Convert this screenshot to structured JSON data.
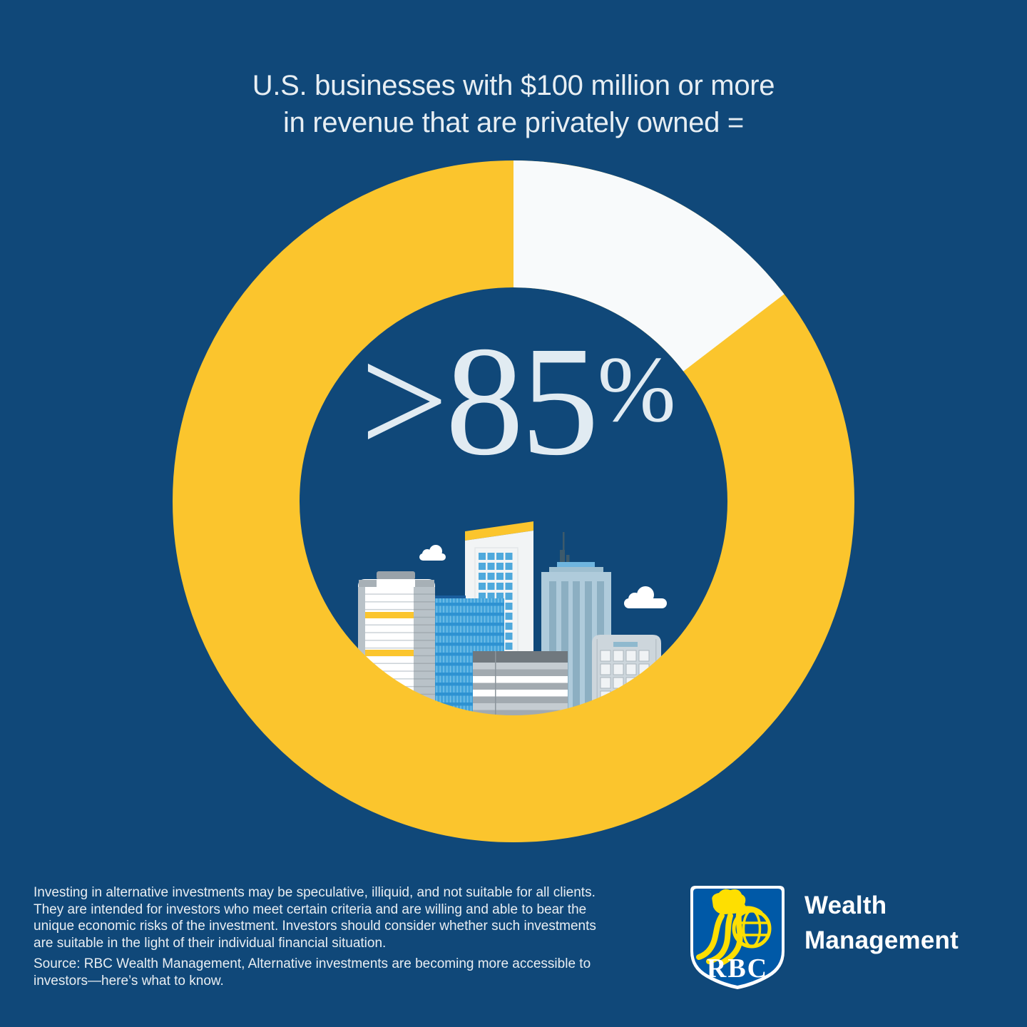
{
  "colors": {
    "background": "#104879",
    "gold": "#FBC52D",
    "slice_white": "#F8FAFB",
    "center_text": "#E1EBF2",
    "title_text": "#E7EEF3",
    "shield_blue": "#0059A7",
    "logo_gold": "#FEDF01"
  },
  "title": {
    "line1": "U.S. businesses with $100 million or more",
    "line2": "in revenue that are privately owned ="
  },
  "chart_data": {
    "type": "pie",
    "donut": true,
    "title": "U.S. businesses with $100 million or more in revenue that are privately owned =",
    "center_value": ">85",
    "center_suffix": "%",
    "slices": [
      {
        "label": "privately owned",
        "value": 85.4,
        "color": "#FBC52D"
      },
      {
        "label": "remainder",
        "value": 14.6,
        "color": "#F8FAFB"
      }
    ],
    "start_angle_deg": 0,
    "direction": "clockwise",
    "legend": "none",
    "center_illustration": "city-skyline"
  },
  "footer": {
    "disclaimer_lines": [
      "Investing in alternative investments may be speculative, illiquid, and not suitable for all clients.",
      "They are intended for investors who meet certain criteria and are willing and able to bear the",
      "unique economic risks of the investment. Investors should consider whether such investments",
      "are suitable in the light of their individual financial situation."
    ],
    "source_lines": [
      "Source: RBC Wealth Management, Alternative investments are becoming more accessible to",
      "investors—here’s what to know."
    ],
    "logo_text": "RBC",
    "brand_line1": "Wealth",
    "brand_line2": "Management"
  }
}
